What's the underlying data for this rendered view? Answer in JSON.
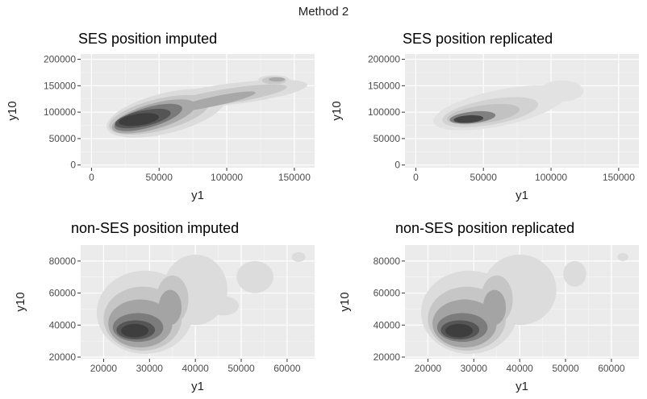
{
  "figure": {
    "title": "Method 2"
  },
  "chart_data": [
    {
      "type": "density2d",
      "title": "SES position imputed",
      "xlabel": "y1",
      "ylabel": "y10",
      "xlim": [
        -8000,
        165000
      ],
      "ylim": [
        -5000,
        210000
      ],
      "xticks": [
        0,
        50000,
        100000,
        150000
      ],
      "yticks": [
        0,
        50000,
        100000,
        150000,
        200000
      ],
      "tick_labels_x": [
        "0",
        "50000",
        "100000",
        "150000"
      ],
      "tick_labels_y": [
        "0",
        "50000",
        "100000",
        "150000",
        "200000"
      ],
      "grid": true,
      "levels": [
        {
          "shade": "#dcdcdc",
          "blobs": [
            {
              "cx": 55000,
              "cy": 98000,
              "rx": 45000,
              "ry": 38000,
              "rot": 14
            },
            {
              "cx": 105000,
              "cy": 135000,
              "rx": 55000,
              "ry": 20000,
              "rot": 7
            },
            {
              "cx": 135000,
              "cy": 160000,
              "rx": 12000,
              "ry": 10000,
              "rot": 0
            }
          ]
        },
        {
          "shade": "#c8c8c8",
          "blobs": [
            {
              "cx": 50000,
              "cy": 95000,
              "rx": 38000,
              "ry": 30000,
              "rot": 14
            },
            {
              "cx": 100000,
              "cy": 130000,
              "rx": 45000,
              "ry": 14000,
              "rot": 9
            },
            {
              "cx": 135000,
              "cy": 160000,
              "rx": 9000,
              "ry": 7000,
              "rot": 0
            }
          ]
        },
        {
          "shade": "#a8a8a8",
          "blobs": [
            {
              "cx": 46000,
              "cy": 92000,
              "rx": 32000,
              "ry": 24000,
              "rot": 16
            },
            {
              "cx": 90000,
              "cy": 120000,
              "rx": 32000,
              "ry": 9000,
              "rot": 12
            },
            {
              "cx": 137000,
              "cy": 162000,
              "rx": 6000,
              "ry": 4000,
              "rot": 0
            }
          ]
        },
        {
          "shade": "#7a7a7a",
          "blobs": [
            {
              "cx": 42000,
              "cy": 90000,
              "rx": 26000,
              "ry": 19000,
              "rot": 16
            }
          ]
        },
        {
          "shade": "#555555",
          "blobs": [
            {
              "cx": 38000,
              "cy": 88000,
              "rx": 21000,
              "ry": 15000,
              "rot": 12
            }
          ]
        },
        {
          "shade": "#3e3e3e",
          "blobs": [
            {
              "cx": 35000,
              "cy": 86000,
              "rx": 15000,
              "ry": 11000,
              "rot": 8
            }
          ]
        }
      ]
    },
    {
      "type": "density2d",
      "title": "SES position replicated",
      "xlabel": "y1",
      "ylabel": "y10",
      "xlim": [
        -8000,
        165000
      ],
      "ylim": [
        -5000,
        210000
      ],
      "xticks": [
        0,
        50000,
        100000,
        150000
      ],
      "yticks": [
        0,
        50000,
        100000,
        150000,
        200000
      ],
      "tick_labels_x": [
        "0",
        "50000",
        "100000",
        "150000"
      ],
      "tick_labels_y": [
        "0",
        "50000",
        "100000",
        "150000",
        "200000"
      ],
      "grid": true,
      "levels": [
        {
          "shade": "#e2e2e2",
          "blobs": [
            {
              "cx": 62000,
              "cy": 108000,
              "rx": 50000,
              "ry": 34000,
              "rot": 12
            },
            {
              "cx": 108000,
              "cy": 140000,
              "rx": 16000,
              "ry": 20000,
              "rot": 0
            }
          ]
        },
        {
          "shade": "#d2d2d2",
          "blobs": [
            {
              "cx": 55000,
              "cy": 100000,
              "rx": 36000,
              "ry": 24000,
              "rot": 10
            }
          ]
        },
        {
          "shade": "#c2c2c2",
          "blobs": [
            {
              "cx": 50000,
              "cy": 96000,
              "rx": 27000,
              "ry": 17000,
              "rot": 8
            }
          ]
        },
        {
          "shade": "#808080",
          "blobs": [
            {
              "cx": 42000,
              "cy": 90000,
              "rx": 17000,
              "ry": 11000,
              "rot": 6
            }
          ]
        },
        {
          "shade": "#444444",
          "blobs": [
            {
              "cx": 39000,
              "cy": 87000,
              "rx": 11000,
              "ry": 7000,
              "rot": 4
            }
          ]
        }
      ]
    },
    {
      "type": "density2d",
      "title": "non-SES position imputed",
      "xlabel": "y1",
      "ylabel": "y10",
      "xlim": [
        15000,
        66000
      ],
      "ylim": [
        19000,
        90000
      ],
      "xticks": [
        20000,
        30000,
        40000,
        50000,
        60000
      ],
      "yticks": [
        20000,
        40000,
        60000,
        80000
      ],
      "tick_labels_x": [
        "20000",
        "30000",
        "40000",
        "50000",
        "60000"
      ],
      "tick_labels_y": [
        "20000",
        "40000",
        "60000",
        "80000"
      ],
      "grid": true,
      "levels": [
        {
          "shade": "#dcdcdc",
          "blobs": [
            {
              "cx": 29000,
              "cy": 48000,
              "rx": 10500,
              "ry": 26000,
              "rot": 0
            },
            {
              "cx": 40000,
              "cy": 62000,
              "rx": 7000,
              "ry": 22000,
              "rot": 0
            },
            {
              "cx": 46000,
              "cy": 52000,
              "rx": 3500,
              "ry": 6000,
              "rot": 0
            },
            {
              "cx": 53000,
              "cy": 70000,
              "rx": 4000,
              "ry": 10000,
              "rot": 0
            },
            {
              "cx": 62500,
              "cy": 82500,
              "rx": 1500,
              "ry": 3000,
              "rot": 0
            }
          ]
        },
        {
          "shade": "#c6c6c6",
          "blobs": [
            {
              "cx": 28500,
              "cy": 44000,
              "rx": 8500,
              "ry": 20000,
              "rot": 0
            },
            {
              "cx": 35000,
              "cy": 56000,
              "rx": 3500,
              "ry": 15000,
              "rot": 0
            }
          ]
        },
        {
          "shade": "#a4a4a4",
          "blobs": [
            {
              "cx": 28000,
              "cy": 41000,
              "rx": 7000,
              "ry": 15000,
              "rot": 0
            },
            {
              "cx": 34500,
              "cy": 51000,
              "rx": 2500,
              "ry": 11000,
              "rot": 0
            }
          ]
        },
        {
          "shade": "#7c7c7c",
          "blobs": [
            {
              "cx": 27500,
              "cy": 38500,
              "rx": 5500,
              "ry": 9000,
              "rot": 0
            }
          ]
        },
        {
          "shade": "#555555",
          "blobs": [
            {
              "cx": 27000,
              "cy": 37000,
              "rx": 4200,
              "ry": 6000,
              "rot": 0
            }
          ]
        },
        {
          "shade": "#3e3e3e",
          "blobs": [
            {
              "cx": 26800,
              "cy": 36500,
              "rx": 3000,
              "ry": 4200,
              "rot": 0
            }
          ]
        }
      ]
    },
    {
      "type": "density2d",
      "title": "non-SES position replicated",
      "xlabel": "y1",
      "ylabel": "y10",
      "xlim": [
        15000,
        66000
      ],
      "ylim": [
        19000,
        90000
      ],
      "xticks": [
        20000,
        30000,
        40000,
        50000,
        60000
      ],
      "yticks": [
        20000,
        40000,
        60000,
        80000
      ],
      "tick_labels_x": [
        "20000",
        "30000",
        "40000",
        "50000",
        "60000"
      ],
      "tick_labels_y": [
        "20000",
        "40000",
        "60000",
        "80000"
      ],
      "grid": true,
      "levels": [
        {
          "shade": "#dcdcdc",
          "blobs": [
            {
              "cx": 29000,
              "cy": 48000,
              "rx": 10500,
              "ry": 26000,
              "rot": 0
            },
            {
              "cx": 40000,
              "cy": 62000,
              "rx": 8000,
              "ry": 22000,
              "rot": 0
            },
            {
              "cx": 52000,
              "cy": 72000,
              "rx": 2500,
              "ry": 8000,
              "rot": 0
            },
            {
              "cx": 62500,
              "cy": 82500,
              "rx": 1200,
              "ry": 2500,
              "rot": 0
            }
          ]
        },
        {
          "shade": "#c6c6c6",
          "blobs": [
            {
              "cx": 28500,
              "cy": 44000,
              "rx": 8500,
              "ry": 20000,
              "rot": 0
            },
            {
              "cx": 35000,
              "cy": 56000,
              "rx": 3500,
              "ry": 15000,
              "rot": 0
            }
          ]
        },
        {
          "shade": "#a4a4a4",
          "blobs": [
            {
              "cx": 28000,
              "cy": 41000,
              "rx": 7000,
              "ry": 15000,
              "rot": 0
            },
            {
              "cx": 34500,
              "cy": 51000,
              "rx": 2500,
              "ry": 11000,
              "rot": 0
            }
          ]
        },
        {
          "shade": "#7c7c7c",
          "blobs": [
            {
              "cx": 27500,
              "cy": 38500,
              "rx": 5500,
              "ry": 9000,
              "rot": 0
            }
          ]
        },
        {
          "shade": "#555555",
          "blobs": [
            {
              "cx": 27000,
              "cy": 37000,
              "rx": 4200,
              "ry": 6000,
              "rot": 0
            }
          ]
        },
        {
          "shade": "#3e3e3e",
          "blobs": [
            {
              "cx": 26800,
              "cy": 36500,
              "rx": 3000,
              "ry": 4200,
              "rot": 0
            }
          ]
        }
      ]
    }
  ]
}
